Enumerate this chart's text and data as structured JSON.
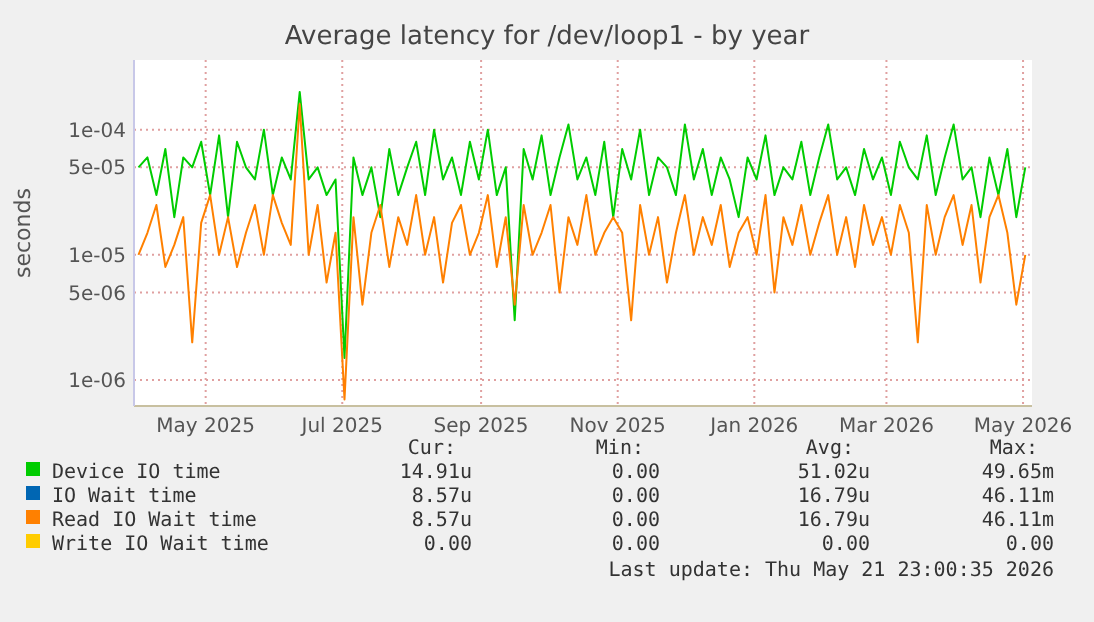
{
  "chart_data": {
    "type": "line",
    "title": "Average latency for /dev/loop1 - by year",
    "ylabel": "seconds",
    "log": "y",
    "grid": true,
    "legend": "bottom",
    "xlim": [
      "2025-03-30",
      "2026-05-05"
    ],
    "ylim": [
      6.2e-07,
      0.00036
    ],
    "xticks": [
      {
        "value": "2025-05-01",
        "label": "May 2025"
      },
      {
        "value": "2025-07-01",
        "label": "Jul 2025"
      },
      {
        "value": "2025-09-01",
        "label": "Sep 2025"
      },
      {
        "value": "2025-11-01",
        "label": "Nov 2025"
      },
      {
        "value": "2026-01-01",
        "label": "Jan 2026"
      },
      {
        "value": "2026-03-01",
        "label": "Mar 2026"
      },
      {
        "value": "2026-05-01",
        "label": "May 2026"
      }
    ],
    "yticks": [
      {
        "value": 1e-06,
        "label": "1e-06"
      },
      {
        "value": 5e-06,
        "label": "5e-06"
      },
      {
        "value": 1e-05,
        "label": "1e-05"
      },
      {
        "value": 5e-05,
        "label": "5e-05"
      },
      {
        "value": 0.0001,
        "label": "1e-04"
      }
    ],
    "x": [
      "2025-04-01",
      "2025-04-05",
      "2025-04-09",
      "2025-04-13",
      "2025-04-17",
      "2025-04-21",
      "2025-04-25",
      "2025-04-29",
      "2025-05-03",
      "2025-05-07",
      "2025-05-11",
      "2025-05-15",
      "2025-05-19",
      "2025-05-23",
      "2025-05-27",
      "2025-05-31",
      "2025-06-04",
      "2025-06-08",
      "2025-06-12",
      "2025-06-16",
      "2025-06-20",
      "2025-06-24",
      "2025-06-28",
      "2025-07-02",
      "2025-07-06",
      "2025-07-10",
      "2025-07-14",
      "2025-07-18",
      "2025-07-22",
      "2025-07-26",
      "2025-07-30",
      "2025-08-03",
      "2025-08-07",
      "2025-08-11",
      "2025-08-15",
      "2025-08-19",
      "2025-08-23",
      "2025-08-27",
      "2025-08-31",
      "2025-09-04",
      "2025-09-08",
      "2025-09-12",
      "2025-09-16",
      "2025-09-20",
      "2025-09-24",
      "2025-09-28",
      "2025-10-02",
      "2025-10-06",
      "2025-10-10",
      "2025-10-14",
      "2025-10-18",
      "2025-10-22",
      "2025-10-26",
      "2025-10-30",
      "2025-11-03",
      "2025-11-07",
      "2025-11-11",
      "2025-11-15",
      "2025-11-19",
      "2025-11-23",
      "2025-11-27",
      "2025-12-01",
      "2025-12-05",
      "2025-12-09",
      "2025-12-13",
      "2025-12-17",
      "2025-12-21",
      "2025-12-25",
      "2025-12-29",
      "2026-01-02",
      "2026-01-06",
      "2026-01-10",
      "2026-01-14",
      "2026-01-18",
      "2026-01-22",
      "2026-01-26",
      "2026-01-30",
      "2026-02-03",
      "2026-02-07",
      "2026-02-11",
      "2026-02-15",
      "2026-02-19",
      "2026-02-23",
      "2026-02-27",
      "2026-03-03",
      "2026-03-07",
      "2026-03-11",
      "2026-03-15",
      "2026-03-19",
      "2026-03-23",
      "2026-03-27",
      "2026-03-31",
      "2026-04-04",
      "2026-04-08",
      "2026-04-12",
      "2026-04-16",
      "2026-04-20",
      "2026-04-24",
      "2026-04-28",
      "2026-05-02"
    ],
    "series": [
      {
        "name": "Device IO time",
        "color": "#00cc00",
        "values": [
          5e-05,
          6e-05,
          3e-05,
          7e-05,
          2e-05,
          6e-05,
          5e-05,
          8e-05,
          3e-05,
          9e-05,
          2e-05,
          8e-05,
          5e-05,
          4e-05,
          0.0001,
          3e-05,
          6e-05,
          4e-05,
          0.0002,
          4e-05,
          5e-05,
          3e-05,
          4e-05,
          1.5e-06,
          6e-05,
          3e-05,
          5e-05,
          2e-05,
          7e-05,
          3e-05,
          5e-05,
          8e-05,
          3e-05,
          0.0001,
          4e-05,
          6e-05,
          3e-05,
          8e-05,
          4e-05,
          0.0001,
          3e-05,
          5e-05,
          3e-06,
          7e-05,
          4e-05,
          9e-05,
          3e-05,
          6e-05,
          0.00011,
          4e-05,
          6e-05,
          3e-05,
          8e-05,
          2e-05,
          7e-05,
          4e-05,
          0.0001,
          3e-05,
          6e-05,
          5e-05,
          3e-05,
          0.00011,
          4e-05,
          7e-05,
          3e-05,
          6e-05,
          4e-05,
          2e-05,
          6e-05,
          4e-05,
          9e-05,
          3e-05,
          5e-05,
          4e-05,
          8e-05,
          3e-05,
          6e-05,
          0.00011,
          4e-05,
          5e-05,
          3e-05,
          7e-05,
          4e-05,
          6e-05,
          3e-05,
          8e-05,
          5e-05,
          4e-05,
          9e-05,
          3e-05,
          6e-05,
          0.00011,
          4e-05,
          5e-05,
          2e-05,
          6e-05,
          3e-05,
          7e-05,
          2e-05,
          5e-05
        ]
      },
      {
        "name": "IO Wait time",
        "color": "#0066b3",
        "values": [
          null,
          null,
          null,
          null,
          null,
          null,
          null,
          null,
          null,
          null,
          null,
          null,
          null,
          null,
          null,
          null,
          null,
          null,
          null,
          null,
          null,
          null,
          null,
          null,
          null,
          null,
          null,
          null,
          null,
          null,
          null,
          null,
          null,
          null,
          null,
          null,
          null,
          null,
          null,
          null,
          null,
          null,
          null,
          null,
          null,
          null,
          null,
          null,
          null,
          null,
          null,
          null,
          null,
          null,
          null,
          null,
          null,
          null,
          null,
          null,
          null,
          null,
          null,
          null,
          null,
          null,
          null,
          null,
          null,
          null,
          null,
          null,
          null,
          null,
          null,
          null,
          null,
          null,
          null,
          null,
          null,
          null,
          null,
          null,
          null,
          null,
          null,
          null,
          null,
          null,
          null,
          null,
          null,
          null,
          null,
          null,
          null,
          null,
          null,
          null
        ]
      },
      {
        "name": "Read IO Wait time",
        "color": "#ff8000",
        "values": [
          1e-05,
          1.5e-05,
          2.5e-05,
          8e-06,
          1.2e-05,
          2e-05,
          2e-06,
          1.8e-05,
          3e-05,
          1e-05,
          2e-05,
          8e-06,
          1.5e-05,
          2.5e-05,
          1e-05,
          3e-05,
          1.8e-05,
          1.2e-05,
          0.00016,
          1e-05,
          2.5e-05,
          6e-06,
          1.5e-05,
          7e-07,
          2e-05,
          4e-06,
          1.5e-05,
          2.5e-05,
          8e-06,
          2e-05,
          1.2e-05,
          3e-05,
          1e-05,
          2e-05,
          6e-06,
          1.8e-05,
          2.5e-05,
          1e-05,
          1.5e-05,
          3e-05,
          8e-06,
          2e-05,
          4e-06,
          2.5e-05,
          1e-05,
          1.5e-05,
          2.5e-05,
          5e-06,
          2e-05,
          1.2e-05,
          3e-05,
          1e-05,
          1.5e-05,
          2e-05,
          1.5e-05,
          3e-06,
          2.5e-05,
          1e-05,
          2e-05,
          6e-06,
          1.5e-05,
          3e-05,
          1e-05,
          2e-05,
          1.2e-05,
          2.5e-05,
          8e-06,
          1.5e-05,
          2e-05,
          1e-05,
          3e-05,
          5e-06,
          2e-05,
          1.2e-05,
          2.5e-05,
          1e-05,
          1.8e-05,
          3e-05,
          1e-05,
          2e-05,
          8e-06,
          2.5e-05,
          1.2e-05,
          2e-05,
          1e-05,
          2.5e-05,
          1.5e-05,
          2e-06,
          2.5e-05,
          1e-05,
          2e-05,
          3e-05,
          1.2e-05,
          2.5e-05,
          6e-06,
          2e-05,
          3e-05,
          1.5e-05,
          4e-06,
          1e-05
        ]
      },
      {
        "name": "Write IO Wait time",
        "color": "#ffcc00",
        "values": [
          null,
          null,
          null,
          null,
          null,
          null,
          null,
          null,
          null,
          null,
          null,
          null,
          null,
          null,
          null,
          null,
          null,
          null,
          null,
          null,
          null,
          null,
          null,
          null,
          null,
          null,
          null,
          null,
          null,
          null,
          null,
          null,
          null,
          null,
          null,
          null,
          null,
          null,
          null,
          null,
          null,
          null,
          null,
          null,
          null,
          null,
          null,
          null,
          null,
          null,
          null,
          null,
          null,
          null,
          null,
          null,
          null,
          null,
          null,
          null,
          null,
          null,
          null,
          null,
          null,
          null,
          null,
          null,
          null,
          null,
          null,
          null,
          null,
          null,
          null,
          null,
          null,
          null,
          null,
          null,
          null,
          null,
          null,
          null,
          null,
          null,
          null,
          null,
          null,
          null,
          null,
          null,
          null,
          null,
          null,
          null,
          null,
          null,
          null,
          null
        ]
      }
    ],
    "annotations": [
      "Cur:",
      "Min:",
      "Avg:",
      "Max:",
      "14.91u",
      "0.00",
      "51.02u",
      "49.65m",
      "8.57u",
      "0.00",
      "16.79u",
      "46.11m",
      "8.57u",
      "0.00",
      "16.79u",
      "46.11m",
      "0.00",
      "0.00",
      "0.00",
      "0.00",
      "Last update: Thu May 21 23:00:35 2026"
    ]
  }
}
